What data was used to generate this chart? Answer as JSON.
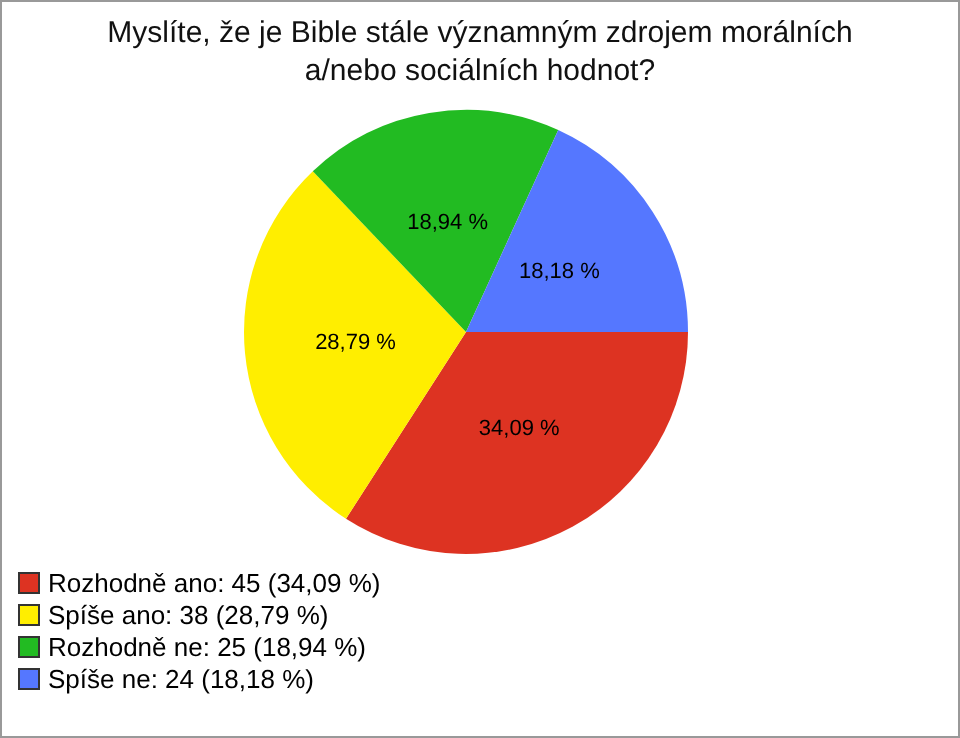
{
  "chart_data": {
    "type": "pie",
    "title": "Myslíte, že je Bible stále významným zdrojem morálních a/nebo sociálních hodnot?",
    "categories": [
      "Rozhodně ano: 45 (34,09 %)",
      "Spíše ano: 38 (28,79 %)",
      "Rozhodně ne: 25 (18,94 %)",
      "Spíše ne: 24 (18,18 %)"
    ],
    "values": [
      34.09,
      28.79,
      18.94,
      18.18
    ],
    "colors": [
      "#dd3322",
      "#ffee00",
      "#22bb22",
      "#5577ff"
    ],
    "value_labels": [
      "34,09 %",
      "28,79 %",
      "18,94 %",
      "18,18 %"
    ],
    "legend": "bottom left"
  }
}
